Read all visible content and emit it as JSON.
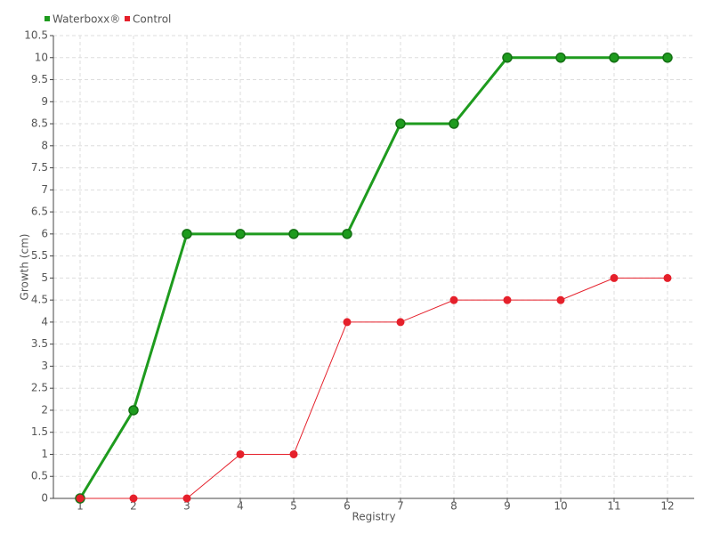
{
  "chart_data": {
    "type": "line",
    "categories": [
      "1",
      "2",
      "3",
      "4",
      "5",
      "6",
      "7",
      "8",
      "9",
      "10",
      "11",
      "12"
    ],
    "series": [
      {
        "name": "Waterboxx®",
        "color": "#1e9b1e",
        "values": [
          0,
          2,
          6,
          6,
          6,
          6,
          8.5,
          8.5,
          10,
          10,
          10,
          10
        ]
      },
      {
        "name": "Control",
        "color": "#e5202b",
        "values": [
          0,
          0,
          0,
          1,
          1,
          4,
          4,
          4.5,
          4.5,
          4.5,
          5,
          5
        ]
      }
    ],
    "x_label": "Registry",
    "y_label": "Growth (cm)",
    "ylim": [
      0,
      10.5
    ],
    "yticks": [
      0,
      0.5,
      1,
      1.5,
      2,
      2.5,
      3,
      3.5,
      4,
      4.5,
      5,
      5.5,
      6,
      6.5,
      7,
      7.5,
      8,
      8.5,
      9,
      9.5,
      10,
      10.5
    ],
    "grid": true,
    "legend": "top-left"
  }
}
